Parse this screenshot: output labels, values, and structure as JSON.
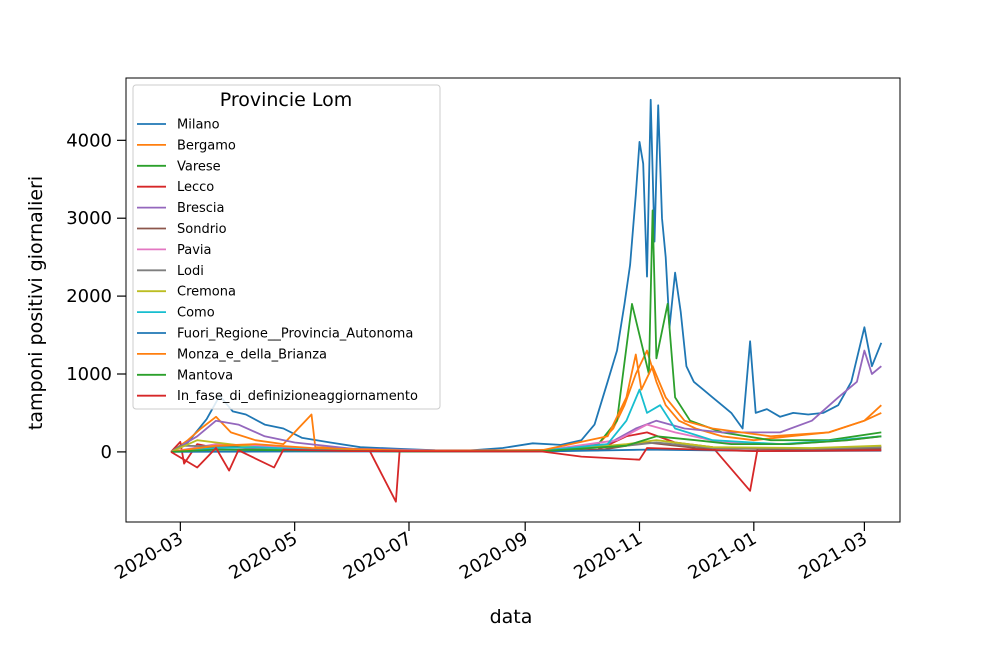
{
  "chart_data": {
    "type": "line",
    "xlabel": "data",
    "ylabel": "tamponi positivi giornalieri",
    "x_ticks": [
      "2020-03",
      "2020-05",
      "2020-07",
      "2020-09",
      "2020-11",
      "2021-01",
      "2021-03"
    ],
    "y_ticks": [
      0,
      1000,
      2000,
      3000,
      4000
    ],
    "xlim": [
      "2020-02-01",
      "2021-03-20"
    ],
    "ylim": [
      -900,
      4800
    ],
    "grid": false,
    "legend": {
      "title": "Provincie Lom",
      "placement": "top-left"
    },
    "series": [
      {
        "name": "Milano",
        "color": "#1f77b4",
        "points": [
          [
            "2020-02-25",
            0
          ],
          [
            "2020-03-05",
            120
          ],
          [
            "2020-03-15",
            420
          ],
          [
            "2020-03-22",
            720
          ],
          [
            "2020-03-29",
            520
          ],
          [
            "2020-04-05",
            480
          ],
          [
            "2020-04-15",
            350
          ],
          [
            "2020-04-25",
            300
          ],
          [
            "2020-05-05",
            180
          ],
          [
            "2020-05-20",
            120
          ],
          [
            "2020-06-05",
            60
          ],
          [
            "2020-06-25",
            40
          ],
          [
            "2020-07-15",
            20
          ],
          [
            "2020-08-01",
            15
          ],
          [
            "2020-08-20",
            50
          ],
          [
            "2020-09-05",
            110
          ],
          [
            "2020-09-20",
            90
          ],
          [
            "2020-10-01",
            150
          ],
          [
            "2020-10-08",
            350
          ],
          [
            "2020-10-15",
            900
          ],
          [
            "2020-10-20",
            1300
          ],
          [
            "2020-10-24",
            1900
          ],
          [
            "2020-10-27",
            2400
          ],
          [
            "2020-10-30",
            3300
          ],
          [
            "2020-11-01",
            3980
          ],
          [
            "2020-11-03",
            3700
          ],
          [
            "2020-11-05",
            2250
          ],
          [
            "2020-11-07",
            4520
          ],
          [
            "2020-11-09",
            2700
          ],
          [
            "2020-11-11",
            4450
          ],
          [
            "2020-11-13",
            3000
          ],
          [
            "2020-11-15",
            2500
          ],
          [
            "2020-11-17",
            1600
          ],
          [
            "2020-11-20",
            2300
          ],
          [
            "2020-11-23",
            1800
          ],
          [
            "2020-11-26",
            1100
          ],
          [
            "2020-11-30",
            900
          ],
          [
            "2020-12-05",
            800
          ],
          [
            "2020-12-10",
            700
          ],
          [
            "2020-12-15",
            600
          ],
          [
            "2020-12-20",
            500
          ],
          [
            "2020-12-26",
            300
          ],
          [
            "2020-12-30",
            1420
          ],
          [
            "2021-01-02",
            500
          ],
          [
            "2021-01-08",
            550
          ],
          [
            "2021-01-15",
            450
          ],
          [
            "2021-01-22",
            500
          ],
          [
            "2021-01-30",
            480
          ],
          [
            "2021-02-07",
            500
          ],
          [
            "2021-02-15",
            600
          ],
          [
            "2021-02-22",
            900
          ],
          [
            "2021-03-01",
            1600
          ],
          [
            "2021-03-05",
            1100
          ],
          [
            "2021-03-10",
            1400
          ]
        ]
      },
      {
        "name": "Bergamo",
        "color": "#ff7f0e",
        "points": [
          [
            "2020-02-25",
            0
          ],
          [
            "2020-03-05",
            150
          ],
          [
            "2020-03-12",
            300
          ],
          [
            "2020-03-20",
            450
          ],
          [
            "2020-03-28",
            250
          ],
          [
            "2020-04-10",
            150
          ],
          [
            "2020-04-25",
            100
          ],
          [
            "2020-05-10",
            480
          ],
          [
            "2020-05-12",
            60
          ],
          [
            "2020-06-01",
            40
          ],
          [
            "2020-06-25",
            25
          ],
          [
            "2020-07-20",
            15
          ],
          [
            "2020-08-20",
            20
          ],
          [
            "2020-09-20",
            30
          ],
          [
            "2020-10-10",
            100
          ],
          [
            "2020-10-18",
            300
          ],
          [
            "2020-10-24",
            600
          ],
          [
            "2020-10-30",
            1000
          ],
          [
            "2020-11-05",
            1300
          ],
          [
            "2020-11-10",
            900
          ],
          [
            "2020-11-15",
            600
          ],
          [
            "2020-11-22",
            400
          ],
          [
            "2020-12-01",
            300
          ],
          [
            "2020-12-15",
            200
          ],
          [
            "2021-01-01",
            150
          ],
          [
            "2021-01-20",
            200
          ],
          [
            "2021-02-10",
            250
          ],
          [
            "2021-03-01",
            400
          ],
          [
            "2021-03-10",
            600
          ]
        ]
      },
      {
        "name": "Varese",
        "color": "#2ca02c",
        "points": [
          [
            "2020-02-25",
            0
          ],
          [
            "2020-03-15",
            60
          ],
          [
            "2020-04-05",
            80
          ],
          [
            "2020-05-01",
            50
          ],
          [
            "2020-06-01",
            20
          ],
          [
            "2020-07-20",
            10
          ],
          [
            "2020-09-10",
            20
          ],
          [
            "2020-10-10",
            100
          ],
          [
            "2020-10-20",
            400
          ],
          [
            "2020-10-28",
            1900
          ],
          [
            "2020-11-01",
            1500
          ],
          [
            "2020-11-06",
            1000
          ],
          [
            "2020-11-08",
            3100
          ],
          [
            "2020-11-10",
            1200
          ],
          [
            "2020-11-16",
            1900
          ],
          [
            "2020-11-20",
            700
          ],
          [
            "2020-11-28",
            400
          ],
          [
            "2020-12-15",
            250
          ],
          [
            "2021-01-10",
            150
          ],
          [
            "2021-02-10",
            150
          ],
          [
            "2021-03-10",
            250
          ]
        ]
      },
      {
        "name": "Lecco",
        "color": "#d62728",
        "points": [
          [
            "2020-02-25",
            0
          ],
          [
            "2020-03-01",
            130
          ],
          [
            "2020-03-03",
            -150
          ],
          [
            "2020-03-10",
            100
          ],
          [
            "2020-03-20",
            50
          ],
          [
            "2020-04-01",
            60
          ],
          [
            "2020-04-10",
            40
          ],
          [
            "2020-05-10",
            20
          ],
          [
            "2020-06-10",
            15
          ],
          [
            "2020-06-24",
            -640
          ],
          [
            "2020-06-26",
            10
          ],
          [
            "2020-07-20",
            5
          ],
          [
            "2020-09-10",
            10
          ],
          [
            "2020-10-10",
            30
          ],
          [
            "2020-10-25",
            200
          ],
          [
            "2020-11-05",
            250
          ],
          [
            "2020-11-20",
            120
          ],
          [
            "2020-12-10",
            60
          ],
          [
            "2020-12-30",
            -500
          ],
          [
            "2021-01-03",
            40
          ],
          [
            "2021-02-01",
            40
          ],
          [
            "2021-03-10",
            60
          ]
        ]
      },
      {
        "name": "Brescia",
        "color": "#9467bd",
        "points": [
          [
            "2020-02-25",
            0
          ],
          [
            "2020-03-10",
            200
          ],
          [
            "2020-03-20",
            400
          ],
          [
            "2020-04-01",
            350
          ],
          [
            "2020-04-15",
            200
          ],
          [
            "2020-05-01",
            120
          ],
          [
            "2020-06-01",
            40
          ],
          [
            "2020-07-15",
            20
          ],
          [
            "2020-09-10",
            20
          ],
          [
            "2020-10-15",
            100
          ],
          [
            "2020-10-30",
            300
          ],
          [
            "2020-11-10",
            400
          ],
          [
            "2020-11-25",
            300
          ],
          [
            "2020-12-15",
            250
          ],
          [
            "2021-01-15",
            250
          ],
          [
            "2021-02-01",
            400
          ],
          [
            "2021-02-15",
            700
          ],
          [
            "2021-02-25",
            900
          ],
          [
            "2021-03-01",
            1300
          ],
          [
            "2021-03-05",
            1000
          ],
          [
            "2021-03-10",
            1100
          ]
        ]
      },
      {
        "name": "Sondrio",
        "color": "#8c564b",
        "points": [
          [
            "2020-02-25",
            0
          ],
          [
            "2020-03-20",
            30
          ],
          [
            "2020-05-01",
            20
          ],
          [
            "2020-07-01",
            5
          ],
          [
            "2020-10-10",
            20
          ],
          [
            "2020-11-05",
            120
          ],
          [
            "2020-12-01",
            50
          ],
          [
            "2021-02-01",
            30
          ],
          [
            "2021-03-10",
            40
          ]
        ]
      },
      {
        "name": "Pavia",
        "color": "#e377c2",
        "points": [
          [
            "2020-02-25",
            0
          ],
          [
            "2020-03-20",
            100
          ],
          [
            "2020-04-10",
            80
          ],
          [
            "2020-05-10",
            40
          ],
          [
            "2020-07-01",
            10
          ],
          [
            "2020-09-10",
            15
          ],
          [
            "2020-10-20",
            150
          ],
          [
            "2020-11-05",
            350
          ],
          [
            "2020-11-20",
            250
          ],
          [
            "2020-12-15",
            120
          ],
          [
            "2021-01-20",
            100
          ],
          [
            "2021-02-20",
            150
          ],
          [
            "2021-03-10",
            200
          ]
        ]
      },
      {
        "name": "Lodi",
        "color": "#7f7f7f",
        "points": [
          [
            "2020-02-25",
            0
          ],
          [
            "2020-03-01",
            80
          ],
          [
            "2020-03-20",
            70
          ],
          [
            "2020-04-20",
            30
          ],
          [
            "2020-06-01",
            10
          ],
          [
            "2020-09-10",
            10
          ],
          [
            "2020-10-25",
            80
          ],
          [
            "2020-11-10",
            120
          ],
          [
            "2020-12-10",
            50
          ],
          [
            "2021-02-01",
            40
          ],
          [
            "2021-03-10",
            60
          ]
        ]
      },
      {
        "name": "Cremona",
        "color": "#bcbd22",
        "points": [
          [
            "2020-02-25",
            0
          ],
          [
            "2020-03-10",
            150
          ],
          [
            "2020-03-20",
            120
          ],
          [
            "2020-04-10",
            60
          ],
          [
            "2020-05-10",
            20
          ],
          [
            "2020-07-01",
            10
          ],
          [
            "2020-09-10",
            10
          ],
          [
            "2020-10-25",
            100
          ],
          [
            "2020-11-10",
            150
          ],
          [
            "2020-12-10",
            60
          ],
          [
            "2021-02-01",
            50
          ],
          [
            "2021-03-10",
            80
          ]
        ]
      },
      {
        "name": "Como",
        "color": "#17becf",
        "points": [
          [
            "2020-02-25",
            0
          ],
          [
            "2020-03-20",
            50
          ],
          [
            "2020-04-10",
            60
          ],
          [
            "2020-05-10",
            30
          ],
          [
            "2020-07-01",
            10
          ],
          [
            "2020-09-10",
            15
          ],
          [
            "2020-10-15",
            100
          ],
          [
            "2020-10-25",
            400
          ],
          [
            "2020-11-01",
            800
          ],
          [
            "2020-11-05",
            500
          ],
          [
            "2020-11-12",
            600
          ],
          [
            "2020-11-20",
            300
          ],
          [
            "2020-12-10",
            150
          ],
          [
            "2021-01-15",
            100
          ],
          [
            "2021-02-15",
            150
          ],
          [
            "2021-03-10",
            200
          ]
        ]
      },
      {
        "name": "Fuori_Regione__Provincia_Autonoma",
        "color": "#1f77b4",
        "points": [
          [
            "2020-02-25",
            0
          ],
          [
            "2020-05-01",
            5
          ],
          [
            "2020-09-10",
            5
          ],
          [
            "2020-11-05",
            30
          ],
          [
            "2021-01-10",
            10
          ],
          [
            "2021-03-10",
            15
          ]
        ]
      },
      {
        "name": "Monza_e_della_Brianza",
        "color": "#ff7f0e",
        "points": [
          [
            "2020-02-25",
            0
          ],
          [
            "2020-03-20",
            80
          ],
          [
            "2020-04-10",
            100
          ],
          [
            "2020-05-10",
            50
          ],
          [
            "2020-07-01",
            15
          ],
          [
            "2020-09-10",
            20
          ],
          [
            "2020-10-15",
            200
          ],
          [
            "2020-10-25",
            700
          ],
          [
            "2020-10-30",
            1250
          ],
          [
            "2020-11-02",
            800
          ],
          [
            "2020-11-08",
            1100
          ],
          [
            "2020-11-15",
            700
          ],
          [
            "2020-11-25",
            400
          ],
          [
            "2020-12-10",
            300
          ],
          [
            "2021-01-10",
            200
          ],
          [
            "2021-02-10",
            250
          ],
          [
            "2021-03-01",
            400
          ],
          [
            "2021-03-10",
            500
          ]
        ]
      },
      {
        "name": "Mantova",
        "color": "#2ca02c",
        "points": [
          [
            "2020-02-25",
            0
          ],
          [
            "2020-03-20",
            30
          ],
          [
            "2020-05-01",
            20
          ],
          [
            "2020-07-01",
            5
          ],
          [
            "2020-09-10",
            10
          ],
          [
            "2020-10-25",
            80
          ],
          [
            "2020-11-10",
            200
          ],
          [
            "2020-12-01",
            150
          ],
          [
            "2020-12-20",
            100
          ],
          [
            "2021-01-20",
            100
          ],
          [
            "2021-02-20",
            150
          ],
          [
            "2021-03-10",
            200
          ]
        ]
      },
      {
        "name": "In_fase_di_definizioneaggiornamento",
        "color": "#d62728",
        "points": [
          [
            "2020-02-25",
            0
          ],
          [
            "2020-03-10",
            -200
          ],
          [
            "2020-03-20",
            50
          ],
          [
            "2020-03-27",
            -240
          ],
          [
            "2020-04-01",
            20
          ],
          [
            "2020-04-20",
            -200
          ],
          [
            "2020-04-25",
            30
          ],
          [
            "2020-06-01",
            10
          ],
          [
            "2020-09-10",
            5
          ],
          [
            "2020-10-01",
            -60
          ],
          [
            "2020-11-01",
            -100
          ],
          [
            "2020-11-05",
            50
          ],
          [
            "2021-01-01",
            10
          ],
          [
            "2021-03-10",
            20
          ]
        ]
      }
    ]
  }
}
